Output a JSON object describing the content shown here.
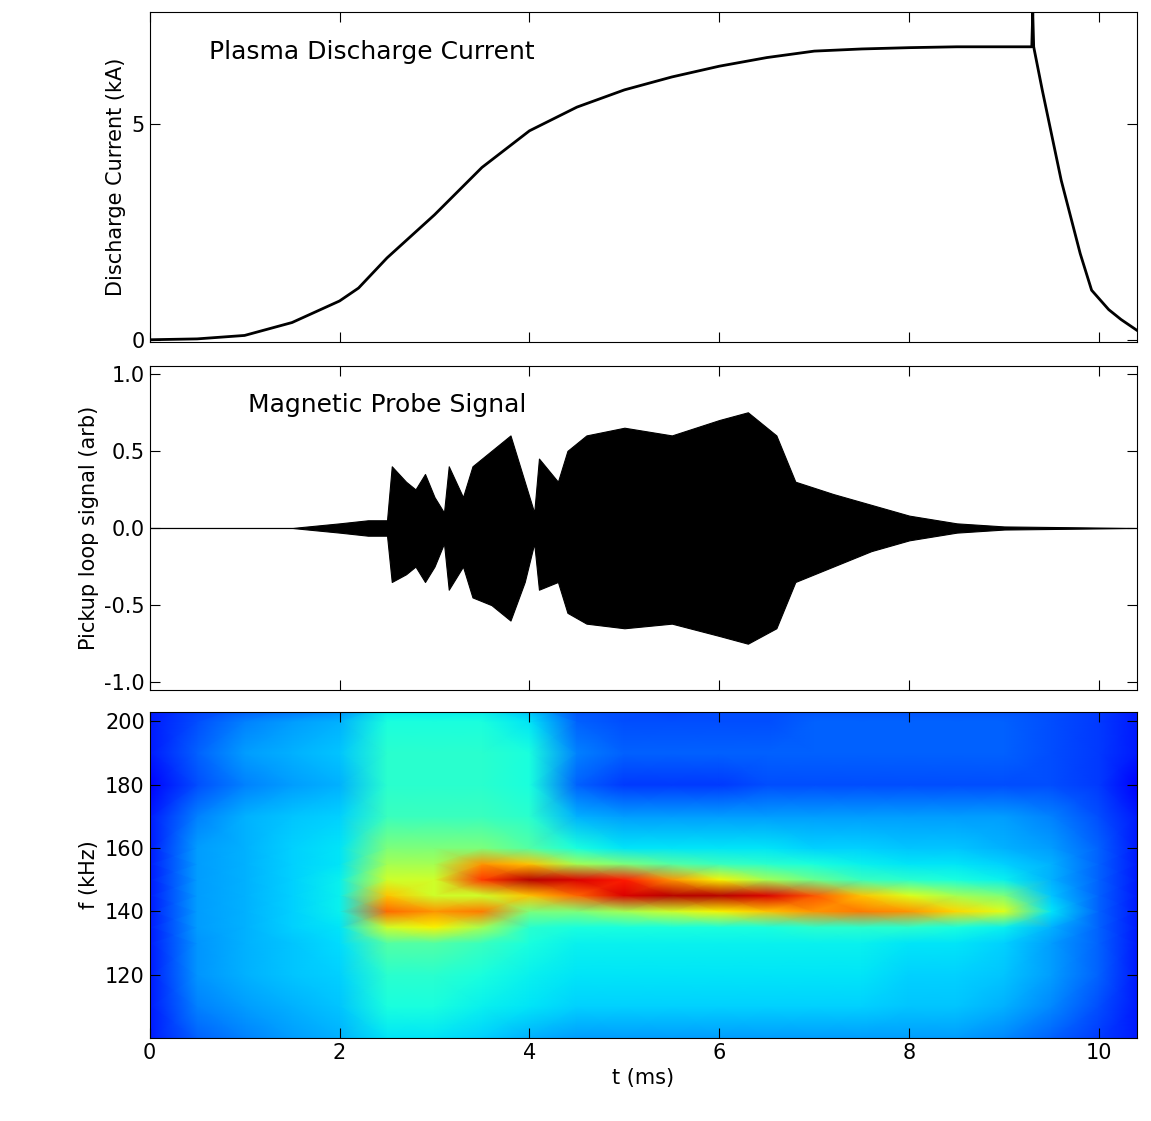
{
  "chart_data": [
    {
      "type": "line",
      "annotation": "Plasma Discharge Current",
      "y_label": "Discharge Current (kA)",
      "x": [
        0,
        0.5,
        1.0,
        1.5,
        2.0,
        2.2,
        2.5,
        3.0,
        3.5,
        4.0,
        4.5,
        5.0,
        5.5,
        6.0,
        6.5,
        7.0,
        7.5,
        8.0,
        8.5,
        9.0,
        9.29,
        9.3,
        9.31,
        9.4,
        9.6,
        9.8,
        9.92,
        10.1,
        10.23,
        10.41
      ],
      "values": [
        0,
        0.02,
        0.1,
        0.4,
        0.9,
        1.2,
        1.9,
        2.9,
        4.0,
        4.85,
        5.4,
        5.8,
        6.1,
        6.35,
        6.55,
        6.7,
        6.75,
        6.78,
        6.8,
        6.8,
        6.8,
        7.6,
        6.8,
        5.8,
        3.7,
        2.0,
        1.15,
        0.7,
        0.47,
        0.2
      ],
      "color": "#000000",
      "xlim": [
        0,
        10.4
      ],
      "ylim": [
        -0.05,
        7.6
      ],
      "xticks": [
        0,
        2,
        4,
        6,
        8,
        10
      ],
      "yticks": [
        0,
        5
      ],
      "tick_labels": "y"
    },
    {
      "type": "area",
      "annotation": "Magnetic Probe Signal",
      "y_label": "Pickup loop signal (arb)",
      "x": [
        0,
        1.5,
        2.0,
        2.3,
        2.5,
        2.55,
        2.7,
        2.8,
        2.9,
        3.0,
        3.1,
        3.15,
        3.3,
        3.4,
        3.6,
        3.8,
        3.95,
        4.05,
        4.1,
        4.3,
        4.4,
        4.6,
        5.0,
        5.5,
        6.0,
        6.3,
        6.6,
        6.8,
        7.2,
        7.6,
        8.0,
        8.5,
        9.0,
        10.4
      ],
      "upper": [
        0,
        0,
        0.03,
        0.05,
        0.05,
        0.4,
        0.3,
        0.25,
        0.35,
        0.2,
        0.1,
        0.4,
        0.2,
        0.4,
        0.5,
        0.6,
        0.3,
        0.1,
        0.45,
        0.3,
        0.5,
        0.6,
        0.65,
        0.6,
        0.7,
        0.75,
        0.6,
        0.3,
        0.22,
        0.15,
        0.08,
        0.03,
        0.01,
        0
      ],
      "lower": [
        0,
        0,
        -0.03,
        -0.05,
        -0.05,
        -0.35,
        -0.3,
        -0.25,
        -0.35,
        -0.25,
        -0.1,
        -0.4,
        -0.25,
        -0.45,
        -0.5,
        -0.6,
        -0.35,
        -0.1,
        -0.4,
        -0.35,
        -0.55,
        -0.62,
        -0.65,
        -0.62,
        -0.7,
        -0.75,
        -0.65,
        -0.35,
        -0.25,
        -0.15,
        -0.08,
        -0.03,
        -0.01,
        0
      ],
      "color": "#000000",
      "xlim": [
        0,
        10.4
      ],
      "ylim": [
        -1.05,
        1.05
      ],
      "xticks": [
        0,
        2,
        4,
        6,
        8,
        10
      ],
      "yticks": [
        {
          "value": -1.0,
          "label": "-1.0"
        },
        {
          "value": -0.5,
          "label": "-0.5"
        },
        {
          "value": 0.0,
          "label": "0.0"
        },
        {
          "value": 0.5,
          "label": "0.5"
        },
        {
          "value": 1.0,
          "label": "1.0"
        }
      ],
      "tick_labels": "y"
    },
    {
      "type": "heatmap",
      "x_label": "t (ms)",
      "y_label": "f (kHz)",
      "color": "jet",
      "x": [
        0,
        0.5,
        1.0,
        1.5,
        2.0,
        2.5,
        3.0,
        3.5,
        4.0,
        4.5,
        5.0,
        5.5,
        6.0,
        6.5,
        7.0,
        7.5,
        8.0,
        8.5,
        9.0,
        9.5,
        10.0,
        10.4
      ],
      "y": [
        100,
        110,
        120,
        130,
        135,
        140,
        145,
        150,
        155,
        160,
        170,
        180,
        190,
        200,
        205
      ],
      "cells": [
        [
          0.15,
          0.22,
          0.25,
          0.28,
          0.3,
          0.35,
          0.35,
          0.33,
          0.3,
          0.28,
          0.28,
          0.28,
          0.28,
          0.28,
          0.28,
          0.28,
          0.28,
          0.28,
          0.26,
          0.22,
          0.18,
          0.15
        ],
        [
          0.15,
          0.25,
          0.28,
          0.3,
          0.32,
          0.38,
          0.38,
          0.36,
          0.35,
          0.33,
          0.33,
          0.33,
          0.33,
          0.33,
          0.33,
          0.33,
          0.32,
          0.32,
          0.3,
          0.26,
          0.2,
          0.15
        ],
        [
          0.15,
          0.27,
          0.3,
          0.32,
          0.33,
          0.4,
          0.4,
          0.38,
          0.36,
          0.35,
          0.35,
          0.35,
          0.35,
          0.35,
          0.35,
          0.35,
          0.33,
          0.33,
          0.32,
          0.28,
          0.22,
          0.15
        ],
        [
          0.15,
          0.27,
          0.3,
          0.32,
          0.34,
          0.45,
          0.45,
          0.42,
          0.38,
          0.36,
          0.36,
          0.36,
          0.36,
          0.36,
          0.36,
          0.36,
          0.35,
          0.35,
          0.33,
          0.28,
          0.22,
          0.15
        ],
        [
          0.15,
          0.28,
          0.3,
          0.33,
          0.35,
          0.6,
          0.65,
          0.55,
          0.4,
          0.38,
          0.38,
          0.38,
          0.38,
          0.38,
          0.4,
          0.4,
          0.4,
          0.38,
          0.36,
          0.3,
          0.22,
          0.15
        ],
        [
          0.15,
          0.28,
          0.3,
          0.33,
          0.36,
          0.8,
          0.75,
          0.78,
          0.5,
          0.5,
          0.55,
          0.6,
          0.65,
          0.7,
          0.75,
          0.78,
          0.75,
          0.68,
          0.62,
          0.35,
          0.22,
          0.15
        ],
        [
          0.15,
          0.28,
          0.3,
          0.33,
          0.36,
          0.7,
          0.6,
          0.6,
          0.7,
          0.8,
          0.92,
          0.95,
          0.95,
          0.92,
          0.82,
          0.7,
          0.62,
          0.55,
          0.5,
          0.32,
          0.22,
          0.15
        ],
        [
          0.15,
          0.28,
          0.3,
          0.33,
          0.36,
          0.6,
          0.6,
          0.85,
          0.95,
          0.92,
          0.88,
          0.75,
          0.65,
          0.55,
          0.48,
          0.42,
          0.4,
          0.38,
          0.36,
          0.3,
          0.22,
          0.15
        ],
        [
          0.15,
          0.28,
          0.3,
          0.33,
          0.35,
          0.55,
          0.55,
          0.75,
          0.7,
          0.55,
          0.5,
          0.45,
          0.42,
          0.4,
          0.38,
          0.36,
          0.35,
          0.35,
          0.33,
          0.3,
          0.22,
          0.15
        ],
        [
          0.15,
          0.28,
          0.3,
          0.33,
          0.35,
          0.5,
          0.5,
          0.5,
          0.45,
          0.38,
          0.35,
          0.35,
          0.35,
          0.35,
          0.33,
          0.33,
          0.32,
          0.32,
          0.3,
          0.28,
          0.22,
          0.15
        ],
        [
          0.15,
          0.25,
          0.3,
          0.32,
          0.33,
          0.42,
          0.42,
          0.42,
          0.4,
          0.3,
          0.28,
          0.28,
          0.28,
          0.28,
          0.28,
          0.28,
          0.28,
          0.28,
          0.28,
          0.25,
          0.2,
          0.15
        ],
        [
          0.12,
          0.2,
          0.25,
          0.28,
          0.3,
          0.4,
          0.4,
          0.4,
          0.38,
          0.22,
          0.18,
          0.18,
          0.18,
          0.2,
          0.2,
          0.2,
          0.2,
          0.2,
          0.2,
          0.2,
          0.18,
          0.12
        ],
        [
          0.15,
          0.22,
          0.28,
          0.3,
          0.32,
          0.4,
          0.4,
          0.4,
          0.38,
          0.25,
          0.22,
          0.22,
          0.22,
          0.22,
          0.22,
          0.22,
          0.22,
          0.22,
          0.22,
          0.2,
          0.18,
          0.15
        ],
        [
          0.15,
          0.2,
          0.25,
          0.28,
          0.3,
          0.38,
          0.38,
          0.38,
          0.35,
          0.22,
          0.2,
          0.2,
          0.2,
          0.2,
          0.22,
          0.22,
          0.22,
          0.22,
          0.22,
          0.2,
          0.18,
          0.15
        ],
        [
          0.15,
          0.18,
          0.2,
          0.22,
          0.25,
          0.35,
          0.35,
          0.35,
          0.3,
          0.2,
          0.2,
          0.18,
          0.2,
          0.2,
          0.2,
          0.2,
          0.2,
          0.2,
          0.2,
          0.2,
          0.18,
          0.15
        ]
      ],
      "cell_range": [
        0,
        1
      ],
      "xlim": [
        0,
        10.4
      ],
      "ylim": [
        100,
        203
      ],
      "xticks": [
        0,
        2,
        4,
        6,
        8,
        10
      ],
      "yticks": [
        120,
        140,
        160,
        180,
        200
      ]
    }
  ]
}
